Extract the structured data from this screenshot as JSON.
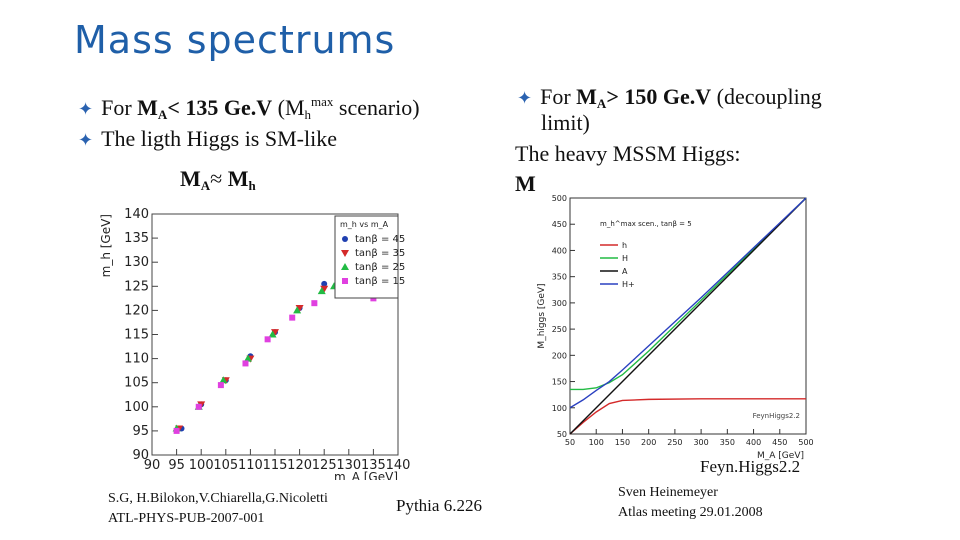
{
  "slide": {
    "title": "Mass spectrums",
    "left_bullets": [
      {
        "pre": "For ",
        "bold_main": "M",
        "bold_sub": "A",
        "bold_rest": "< 135 Ge.V",
        "mid": " (M",
        "sub": "h",
        "sup": "max",
        "post": " scenario)"
      },
      {
        "text": "The ligth Higgs is SM-like"
      }
    ],
    "left_eq": {
      "a": "M",
      "a_sub": "A",
      "approx": "≈",
      "b": "M",
      "b_sub": "h"
    },
    "right_bullet": {
      "pre": "For ",
      "bold_main": "M",
      "bold_sub": "A",
      "bold_rest": "> 150 Ge.V",
      "post": " (decoupling",
      "line2": "limit)"
    },
    "right_text": "The heavy MSSM Higgs:",
    "right_partial": "M",
    "left_credit_1": "S.G, H.Bilokon,V.Chiarella,G.Nicoletti",
    "left_credit_2": "ATL-PHYS-PUB-2007-001",
    "pythia": "Pythia 6.226",
    "feynhiggs_label": "Feyn.Higgs2.2",
    "credit_right_1": "Sven Heinemeyer",
    "credit_right_2": "Atlas meeting 29.01.2008"
  },
  "chart_data": [
    {
      "type": "scatter",
      "title": "",
      "xlabel": "m_A [GeV]",
      "ylabel": "m_h [GeV]",
      "xlim": [
        90,
        140
      ],
      "ylim": [
        90,
        140
      ],
      "x_ticks": [
        90,
        95,
        100,
        105,
        110,
        115,
        120,
        125,
        130,
        135,
        140
      ],
      "y_ticks": [
        90,
        95,
        100,
        105,
        110,
        115,
        120,
        125,
        130,
        135,
        140
      ],
      "x_tick_labels": [
        "90",
        "95",
        "100",
        "105",
        "110",
        "115",
        "120",
        "125",
        "130",
        "135",
        "140"
      ],
      "y_tick_labels": [
        "90",
        "95",
        "100",
        "105",
        "110",
        "115",
        "120",
        "125",
        "130",
        "135",
        "140"
      ],
      "legend_title": "m_h vs m_A",
      "legend_position": "top-right",
      "series": [
        {
          "name": "tanβ = 45",
          "color": "#1f3fb0",
          "marker": "circle",
          "x": [
            96,
            100,
            105,
            110,
            115,
            120,
            125,
            128
          ],
          "y": [
            95.5,
            100.5,
            105.5,
            110.5,
            115.5,
            120.5,
            125.5,
            126
          ]
        },
        {
          "name": "tanβ = 35",
          "color": "#d42a2a",
          "marker": "triangle-down",
          "x": [
            95.5,
            100,
            105,
            110,
            115,
            120,
            125,
            130
          ],
          "y": [
            95.5,
            100.5,
            105.5,
            110,
            115.5,
            120.5,
            124.5,
            125.5
          ]
        },
        {
          "name": "tanβ = 25",
          "color": "#22bb44",
          "marker": "triangle-up",
          "x": [
            95,
            99.5,
            104.5,
            109.5,
            114.5,
            119.5,
            124.5,
            127
          ],
          "y": [
            95.5,
            100,
            105.5,
            110,
            115,
            120,
            124,
            125
          ]
        },
        {
          "name": "tanβ = 15",
          "color": "#e040e0",
          "marker": "square",
          "x": [
            95,
            99.5,
            104,
            109,
            113.5,
            118.5,
            123,
            129,
            135
          ],
          "y": [
            95,
            100,
            104.5,
            109,
            114,
            118.5,
            121.5,
            123.5,
            122.5
          ]
        }
      ]
    },
    {
      "type": "line",
      "title": "",
      "xlabel": "M_A [GeV]",
      "ylabel": "M_higgs [GeV]",
      "xlim": [
        50,
        500
      ],
      "ylim": [
        50,
        500
      ],
      "x_ticks": [
        50,
        100,
        150,
        200,
        250,
        300,
        350,
        400,
        450,
        500
      ],
      "y_ticks": [
        50,
        100,
        150,
        200,
        250,
        300,
        350,
        400,
        450,
        500
      ],
      "x_tick_labels": [
        "50",
        "100",
        "150",
        "200",
        "250",
        "300",
        "350",
        "400",
        "450",
        "500"
      ],
      "y_tick_labels": [
        "50",
        "100",
        "150",
        "200",
        "250",
        "300",
        "350",
        "400",
        "450",
        "500"
      ],
      "legend_title": "m_h^max scen., tanβ = 5",
      "watermark": "FeynHiggs2.2",
      "legend_position": "top-left",
      "series": [
        {
          "name": "h",
          "color": "#d42a2a",
          "x": [
            50,
            75,
            100,
            125,
            150,
            200,
            300,
            500
          ],
          "y": [
            50,
            72,
            92,
            108,
            114,
            116,
            117,
            117
          ]
        },
        {
          "name": "H",
          "color": "#22bb44",
          "x": [
            50,
            75,
            100,
            125,
            150,
            200,
            300,
            500
          ],
          "y": [
            135,
            135,
            138,
            148,
            163,
            208,
            305,
            503
          ]
        },
        {
          "name": "A",
          "color": "#111111",
          "x": [
            50,
            500
          ],
          "y": [
            50,
            500
          ]
        },
        {
          "name": "H+",
          "color": "#2a40c0",
          "x": [
            50,
            75,
            100,
            125,
            150,
            200,
            300,
            500
          ],
          "y": [
            100,
            115,
            133,
            150,
            172,
            218,
            310,
            506
          ]
        }
      ]
    }
  ]
}
